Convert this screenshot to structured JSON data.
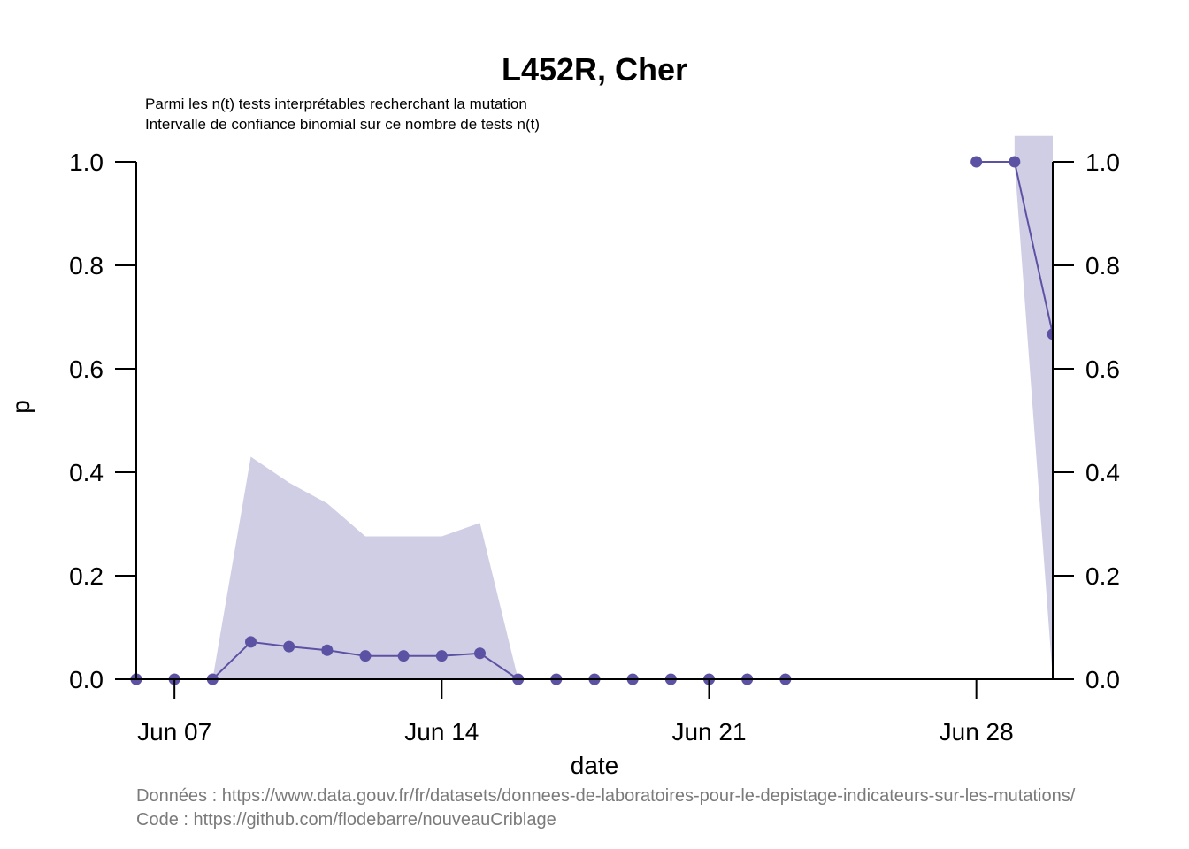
{
  "chart_data": {
    "type": "line",
    "title": "L452R, Cher",
    "subtitle_lines": [
      "Parmi les n(t) tests interprétables recherchant la mutation",
      "Intervalle de confiance binomial sur ce nombre de tests n(t)"
    ],
    "xlabel": "date",
    "ylabel": "p",
    "x_ticks": [
      "Jun 07",
      "Jun 14",
      "Jun 21",
      "Jun 28"
    ],
    "x_tick_dates": [
      "2021-06-07",
      "2021-06-14",
      "2021-06-21",
      "2021-06-28"
    ],
    "xlim": [
      "2021-06-06",
      "2021-06-30"
    ],
    "ylim": [
      0,
      1
    ],
    "y_ticks": [
      "0.0",
      "0.2",
      "0.4",
      "0.6",
      "0.8",
      "1.0"
    ],
    "y_ticks_right": true,
    "grid": false,
    "colors": {
      "point": "#5c52a3",
      "line": "#5c52a3",
      "ribbon": "#d0cee5"
    },
    "segments": [
      {
        "points": [
          {
            "date": "2021-06-06",
            "p": 0.0
          },
          {
            "date": "2021-06-07",
            "p": 0.0
          },
          {
            "date": "2021-06-08",
            "p": 0.0
          },
          {
            "date": "2021-06-09",
            "p": 0.072
          },
          {
            "date": "2021-06-10",
            "p": 0.063
          },
          {
            "date": "2021-06-11",
            "p": 0.056
          },
          {
            "date": "2021-06-12",
            "p": 0.045
          },
          {
            "date": "2021-06-13",
            "p": 0.045
          },
          {
            "date": "2021-06-14",
            "p": 0.045
          },
          {
            "date": "2021-06-15",
            "p": 0.05
          },
          {
            "date": "2021-06-16",
            "p": 0.0
          },
          {
            "date": "2021-06-17",
            "p": 0.0
          },
          {
            "date": "2021-06-18",
            "p": 0.0
          },
          {
            "date": "2021-06-19",
            "p": 0.0
          },
          {
            "date": "2021-06-20",
            "p": 0.0
          },
          {
            "date": "2021-06-21",
            "p": 0.0
          },
          {
            "date": "2021-06-22",
            "p": 0.0
          },
          {
            "date": "2021-06-23",
            "p": 0.0
          }
        ],
        "ci_lower": [
          0,
          0,
          0,
          0,
          0,
          0,
          0,
          0,
          0,
          0,
          0,
          0,
          0,
          0,
          0,
          0,
          0,
          0
        ],
        "ci_upper": [
          0,
          0,
          0,
          0.43,
          0.38,
          0.34,
          0.276,
          0.276,
          0.276,
          0.302,
          0,
          0,
          0,
          0,
          0,
          0,
          0,
          0
        ]
      },
      {
        "points": [
          {
            "date": "2021-06-28",
            "p": 1.0
          },
          {
            "date": "2021-06-29",
            "p": 1.0
          },
          {
            "date": "2021-06-30",
            "p": 0.667
          }
        ],
        "ci_lower": [
          null,
          1.0,
          0.0
        ],
        "ci_upper": [
          null,
          1.05,
          1.05
        ]
      }
    ]
  },
  "caption": {
    "data_line": "Données : https://www.data.gouv.fr/fr/datasets/donnees-de-laboratoires-pour-le-depistage-indicateurs-sur-les-mutations/",
    "code_line": "Code : https://github.com/flodebarre/nouveauCriblage"
  }
}
